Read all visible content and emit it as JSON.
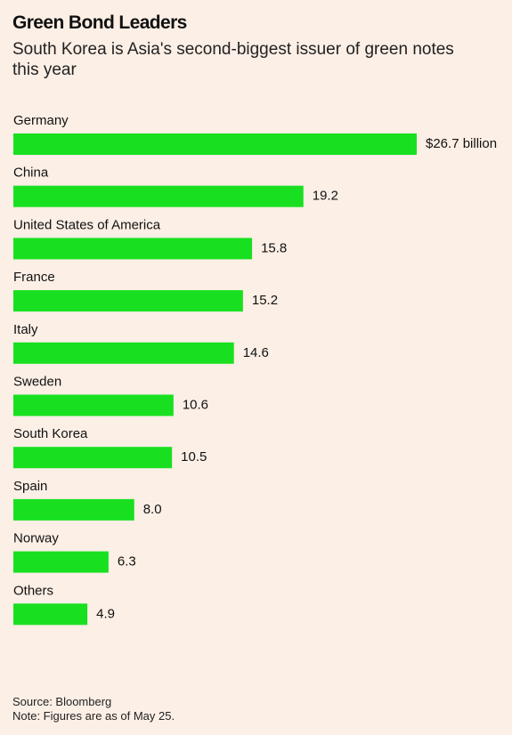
{
  "chart_data": {
    "type": "hbar",
    "title": "Green Bond Leaders",
    "subtitle": "South Korea is Asia's second-biggest issuer of green notes this year",
    "categories": [
      "Germany",
      "China",
      "United States of America",
      "France",
      "Italy",
      "Sweden",
      "South Korea",
      "Spain",
      "Norway",
      "Others"
    ],
    "values": [
      26.7,
      19.2,
      15.8,
      15.2,
      14.6,
      10.6,
      10.5,
      8.0,
      6.3,
      4.9
    ],
    "value_labels": [
      "$26.7 billion",
      "19.2",
      "15.8",
      "15.2",
      "14.6",
      "10.6",
      "10.5",
      "8.0",
      "6.3",
      "4.9"
    ],
    "color": "#18e020",
    "source": "Source: Bloomberg",
    "note": "Note: Figures are as of May 25."
  }
}
